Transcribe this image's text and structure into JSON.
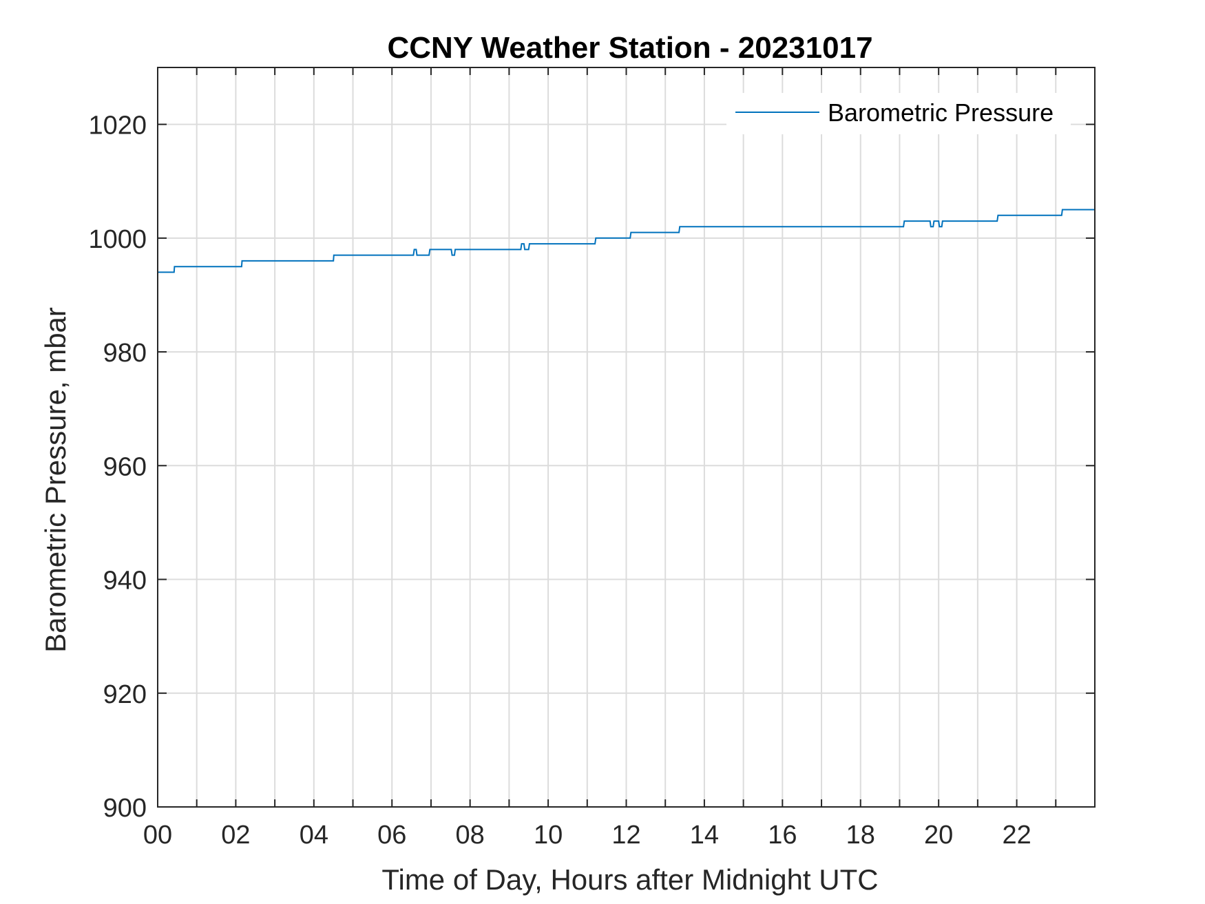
{
  "chart_data": {
    "type": "line",
    "title": "CCNY Weather Station - 20231017",
    "xlabel": "Time of Day, Hours after Midnight UTC",
    "ylabel": "Barometric Pressure, mbar",
    "xlim": [
      0,
      24
    ],
    "ylim": [
      900,
      1030
    ],
    "x_ticks": [
      0,
      2,
      4,
      6,
      8,
      10,
      12,
      14,
      16,
      18,
      20,
      22
    ],
    "x_tick_labels": [
      "00",
      "02",
      "04",
      "06",
      "08",
      "10",
      "12",
      "14",
      "16",
      "18",
      "20",
      "22"
    ],
    "x_grid": [
      0,
      1,
      2,
      3,
      4,
      5,
      6,
      7,
      8,
      9,
      10,
      11,
      12,
      13,
      14,
      15,
      16,
      17,
      18,
      19,
      20,
      21,
      22,
      23
    ],
    "y_ticks": [
      900,
      920,
      940,
      960,
      980,
      1000,
      1020
    ],
    "y_tick_labels": [
      "900",
      "920",
      "940",
      "960",
      "980",
      "1000",
      "1020"
    ],
    "grid": true,
    "legend_position": "top-right",
    "series": [
      {
        "name": "Barometric Pressure",
        "color": "#0072BD",
        "x": [
          0,
          0.42,
          0.43,
          2.15,
          2.16,
          4.5,
          4.51,
          6.55,
          6.57,
          6.62,
          6.64,
          6.95,
          6.97,
          7.52,
          7.54,
          7.6,
          7.62,
          9.3,
          9.32,
          9.38,
          9.4,
          9.5,
          9.52,
          11.2,
          11.22,
          12.1,
          12.12,
          13.35,
          13.37,
          19.1,
          19.12,
          19.78,
          19.8,
          19.86,
          19.88,
          20.0,
          20.02,
          20.08,
          20.1,
          21.5,
          21.52,
          23.15,
          23.17,
          24.0
        ],
        "y": [
          994,
          994,
          995,
          995,
          996,
          996,
          997,
          997,
          998,
          998,
          997,
          997,
          998,
          998,
          997,
          997,
          998,
          998,
          999,
          999,
          998,
          998,
          999,
          999,
          1000,
          1000,
          1001,
          1001,
          1002,
          1002,
          1003,
          1003,
          1002,
          1002,
          1003,
          1003,
          1002,
          1002,
          1003,
          1003,
          1004,
          1004,
          1005,
          1005
        ]
      }
    ]
  }
}
